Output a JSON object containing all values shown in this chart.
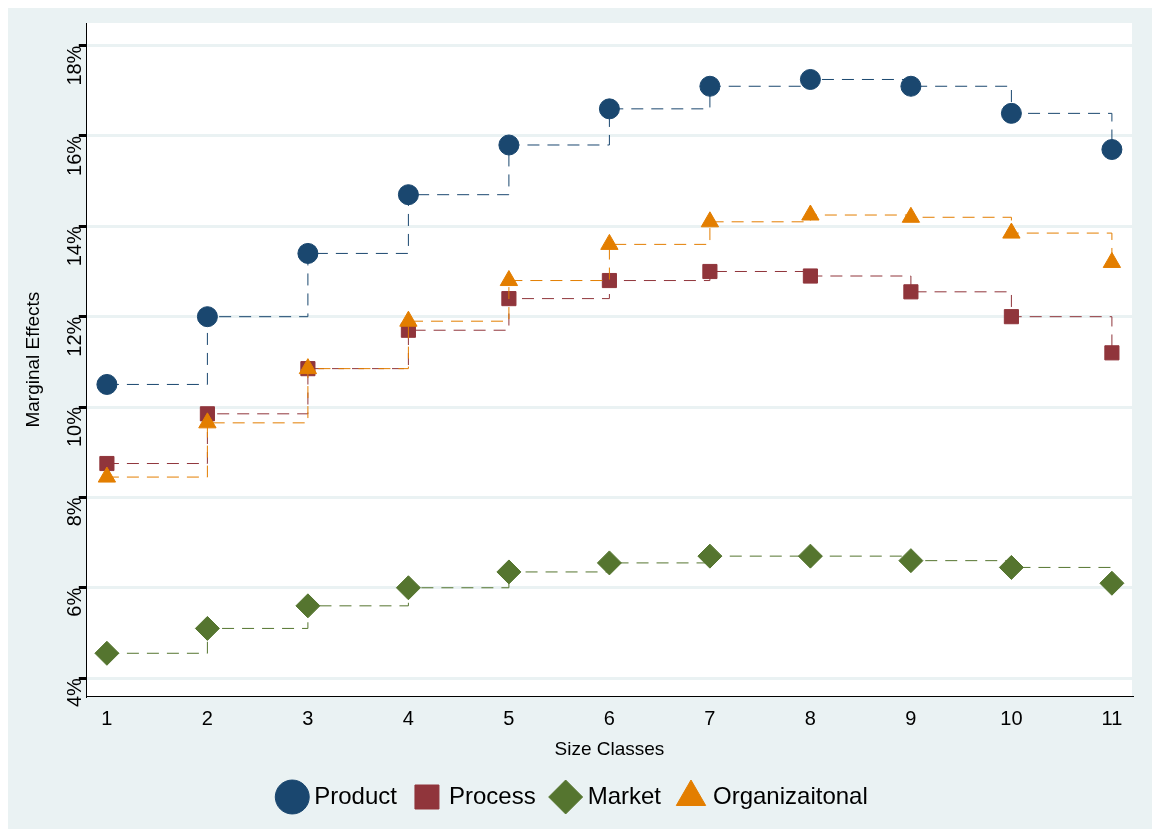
{
  "chart_data": {
    "type": "step",
    "xlabel": "Size Classes",
    "ylabel": "Marginal Effects",
    "x": [
      1,
      2,
      3,
      4,
      5,
      6,
      7,
      8,
      9,
      10,
      11
    ],
    "xlim": [
      0.8,
      11.2
    ],
    "xticks": [
      1,
      2,
      3,
      4,
      5,
      6,
      7,
      8,
      9,
      10,
      11
    ],
    "ylim": [
      3.6,
      18.5
    ],
    "yticks": [
      {
        "value": 4,
        "label": "4%"
      },
      {
        "value": 6,
        "label": "6%"
      },
      {
        "value": 8,
        "label": "8%"
      },
      {
        "value": 10,
        "label": "10%"
      },
      {
        "value": 12,
        "label": "12%"
      },
      {
        "value": 14,
        "label": "14%"
      },
      {
        "value": 16,
        "label": "16%"
      },
      {
        "value": 18,
        "label": "18%"
      }
    ],
    "grid": "y",
    "legend": "bottom",
    "line_style": "dashed",
    "series": [
      {
        "name": "Product",
        "color": "#1a476f",
        "marker": "circle",
        "values": [
          10.5,
          12.0,
          13.4,
          14.7,
          15.8,
          16.6,
          17.1,
          17.25,
          17.1,
          16.5,
          15.7
        ]
      },
      {
        "name": "Process",
        "color": "#90353b",
        "marker": "square",
        "values": [
          8.75,
          9.85,
          10.85,
          11.7,
          12.4,
          12.8,
          13.0,
          12.9,
          12.55,
          12.0,
          11.2
        ]
      },
      {
        "name": "Market",
        "color": "#55752f",
        "marker": "diamond",
        "values": [
          4.55,
          5.1,
          5.6,
          6.0,
          6.35,
          6.55,
          6.7,
          6.7,
          6.6,
          6.45,
          6.1
        ]
      },
      {
        "name": "Organizaitonal",
        "color": "#e37e00",
        "marker": "triangle",
        "values": [
          8.45,
          9.65,
          10.85,
          11.9,
          12.8,
          13.6,
          14.1,
          14.25,
          14.2,
          13.85,
          13.2
        ]
      }
    ]
  }
}
